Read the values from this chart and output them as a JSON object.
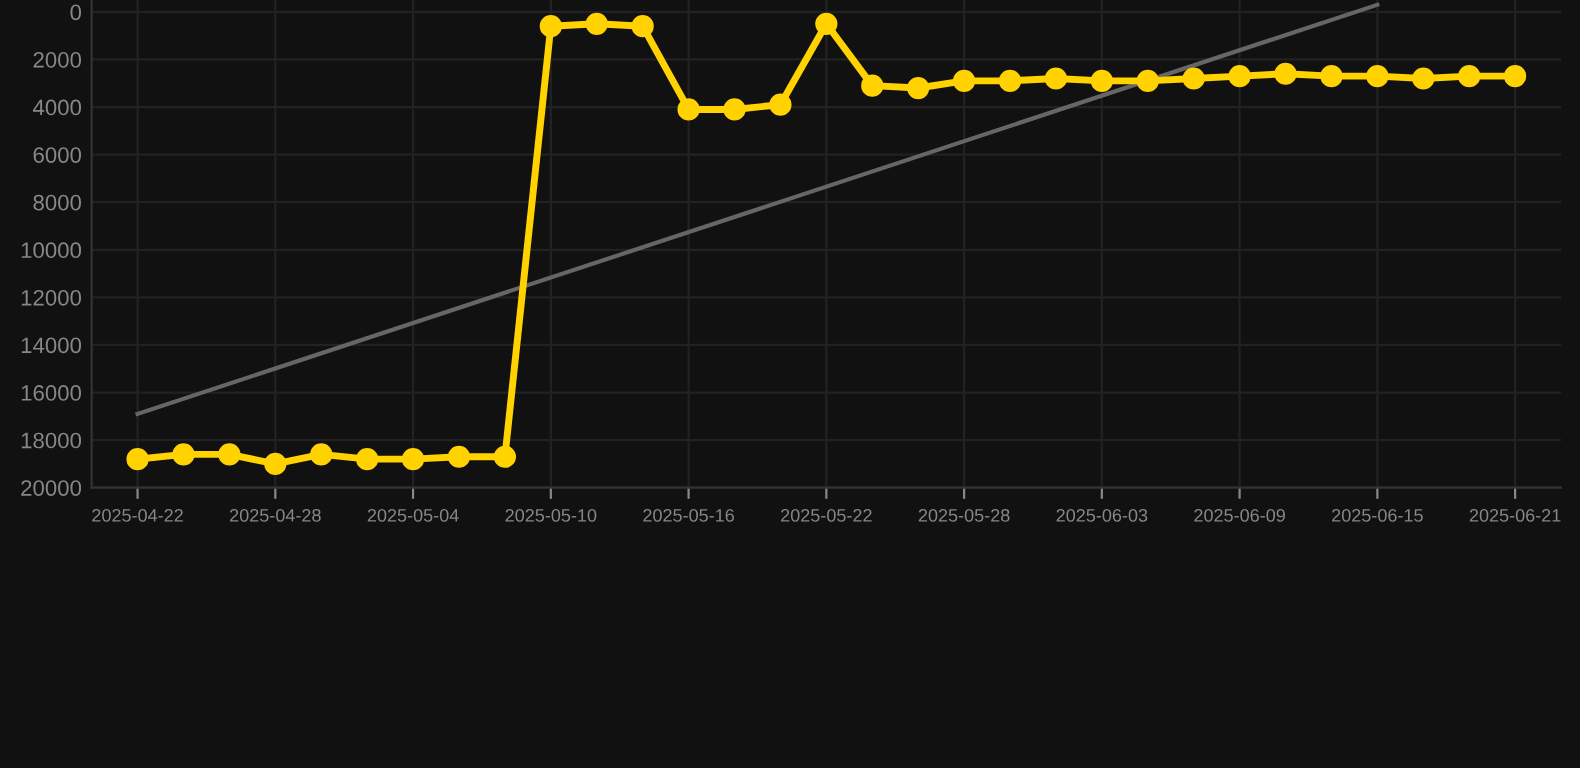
{
  "chart_data": {
    "type": "line",
    "x": [
      "2025-04-22",
      "2025-04-24",
      "2025-04-26",
      "2025-04-28",
      "2025-04-30",
      "2025-05-02",
      "2025-05-04",
      "2025-05-06",
      "2025-05-08",
      "2025-05-10",
      "2025-05-12",
      "2025-05-14",
      "2025-05-16",
      "2025-05-18",
      "2025-05-20",
      "2025-05-22",
      "2025-05-24",
      "2025-05-26",
      "2025-05-28",
      "2025-05-30",
      "2025-06-01",
      "2025-06-03",
      "2025-06-05",
      "2025-06-07",
      "2025-06-09",
      "2025-06-11",
      "2025-06-13",
      "2025-06-15",
      "2025-06-17",
      "2025-06-19",
      "2025-06-21"
    ],
    "series": [
      {
        "color": "#ffd200",
        "marker": "circle",
        "values": [
          18800,
          18600,
          18600,
          19000,
          18600,
          18800,
          18800,
          18700,
          18700,
          600,
          500,
          600,
          4100,
          4100,
          3900,
          500,
          3100,
          3200,
          2900,
          2900,
          2800,
          2900,
          2900,
          2800,
          2700,
          2600,
          2700,
          2700,
          2800,
          2700,
          2700
        ]
      },
      {
        "type": "line",
        "color": "#666666",
        "marker": "none",
        "x": [
          "2025-04-22",
          "2025-06-15"
        ],
        "values": [
          16900,
          -300
        ]
      }
    ],
    "xlim": [
      "2025-04-20",
      "2025-06-23"
    ],
    "xticks": [
      "2025-04-22",
      "2025-04-28",
      "2025-05-04",
      "2025-05-10",
      "2025-05-16",
      "2025-05-22",
      "2025-05-28",
      "2025-06-03",
      "2025-06-09",
      "2025-06-15",
      "2025-06-21"
    ],
    "ylim": [
      20000,
      -500
    ],
    "yticks": [
      0,
      2000,
      4000,
      6000,
      8000,
      10000,
      12000,
      14000,
      16000,
      18000,
      20000
    ],
    "grid": true,
    "line_style": "solid"
  }
}
